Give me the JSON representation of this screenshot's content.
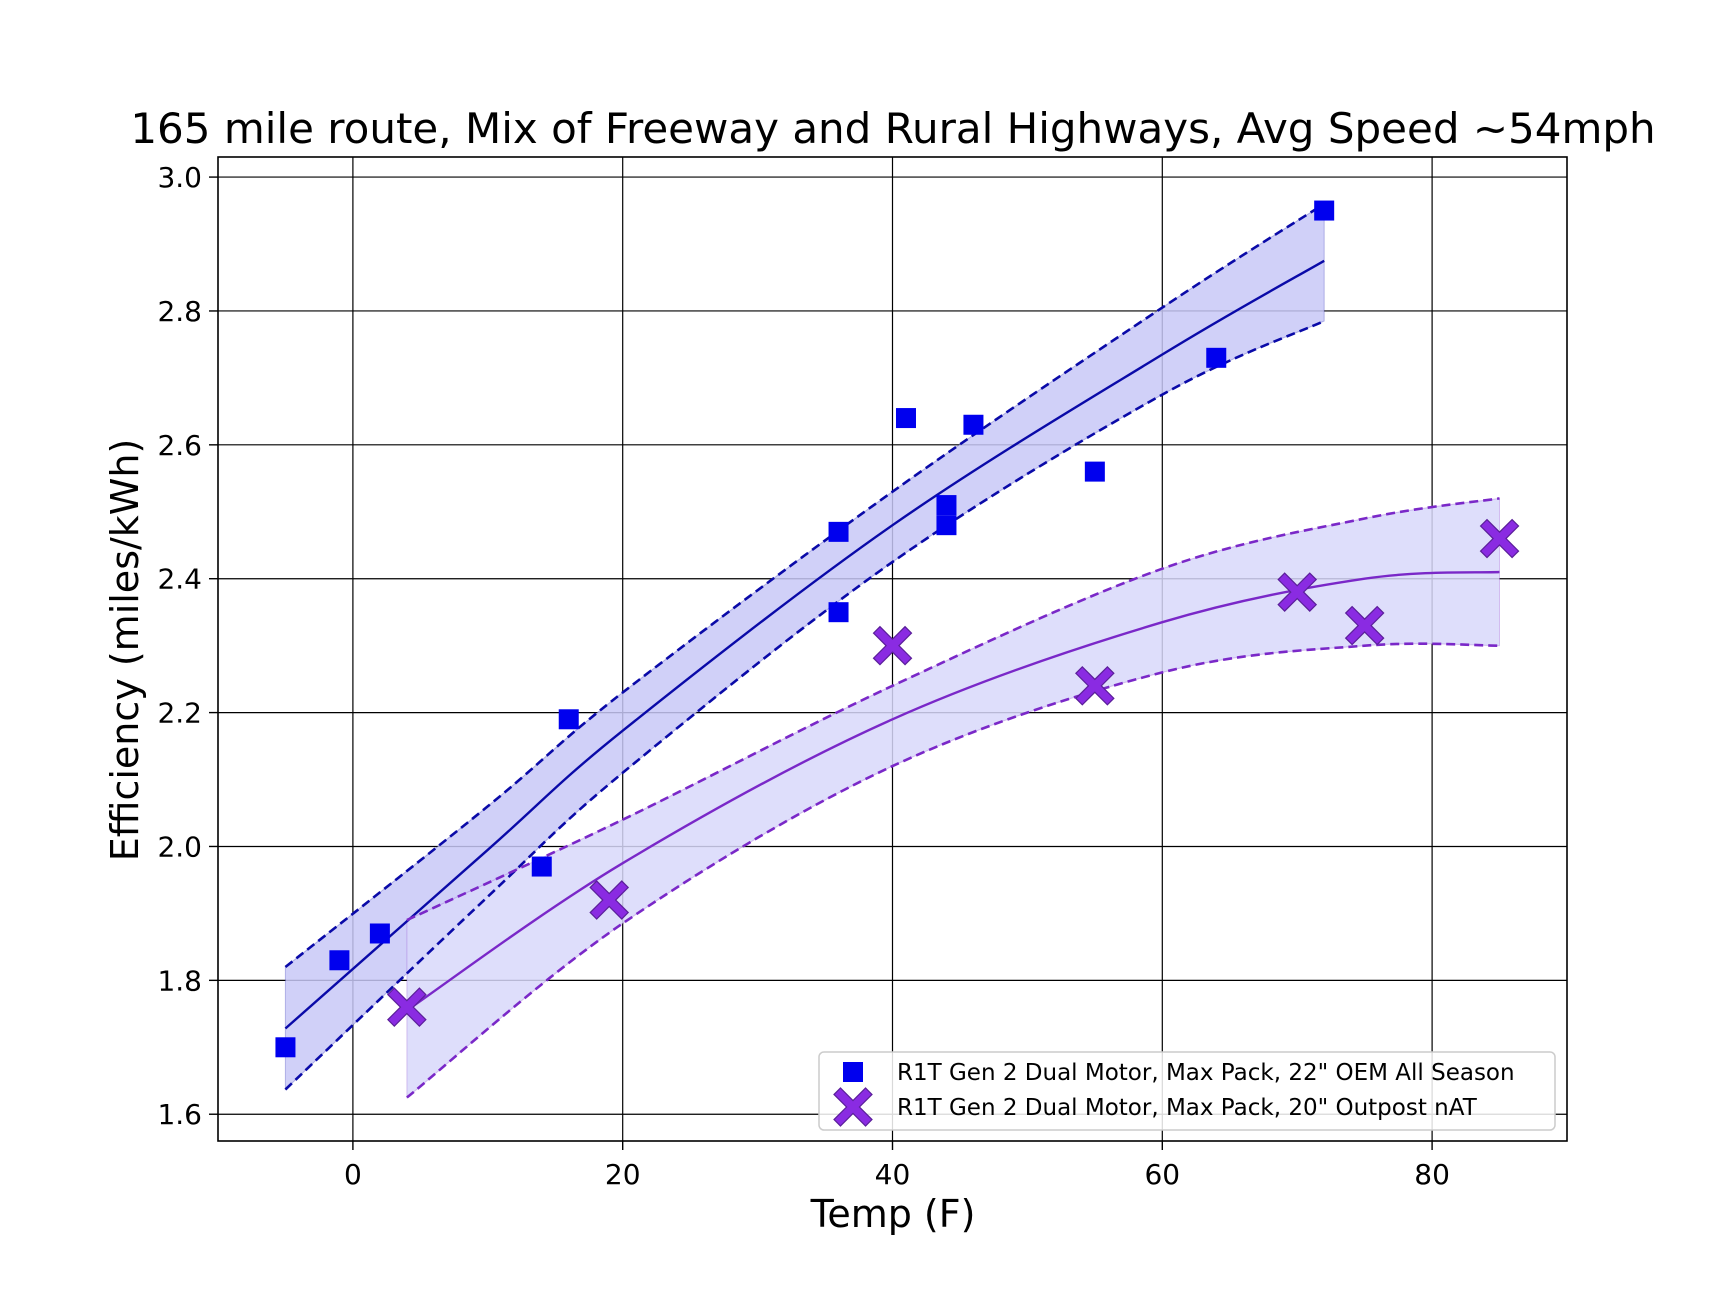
{
  "chart_data": {
    "type": "scatter",
    "title": "165 mile route, Mix of Freeway and Rural Highways, Avg Speed ~54mph",
    "xlabel": "Temp (F)",
    "ylabel": "Efficiency (miles/kWh)",
    "xlim": [
      -10,
      90
    ],
    "ylim": [
      1.56,
      3.03
    ],
    "xticks": [
      0,
      20,
      40,
      60,
      80
    ],
    "yticks": [
      1.6,
      1.8,
      2.0,
      2.2,
      2.4,
      2.6,
      2.8,
      3.0
    ],
    "grid": true,
    "legend_position": "lower-right",
    "series": [
      {
        "name": "R1T Gen 2 Dual Motor, Max Pack, 22\" OEM All Season",
        "marker": "square",
        "color": "#0000ee",
        "fit_color": "#0a0aa8",
        "band_color": "#c8c8f7",
        "points": [
          [
            -5,
            1.7
          ],
          [
            -1,
            1.83
          ],
          [
            2,
            1.87
          ],
          [
            14,
            1.97
          ],
          [
            16,
            2.19
          ],
          [
            36,
            2.47
          ],
          [
            36,
            2.35
          ],
          [
            41,
            2.64
          ],
          [
            44,
            2.51
          ],
          [
            44,
            2.48
          ],
          [
            46,
            2.63
          ],
          [
            55,
            2.56
          ],
          [
            64,
            2.73
          ],
          [
            72,
            2.95
          ]
        ],
        "fit": [
          [
            -5,
            1.728
          ],
          [
            10,
            1.995
          ],
          [
            20,
            2.173
          ],
          [
            40,
            2.48
          ],
          [
            60,
            2.735
          ],
          [
            72,
            2.875
          ]
        ],
        "band_upper": [
          [
            -5,
            1.82
          ],
          [
            10,
            2.06
          ],
          [
            20,
            2.23
          ],
          [
            40,
            2.53
          ],
          [
            60,
            2.805
          ],
          [
            72,
            2.96
          ]
        ],
        "band_lower": [
          [
            -5,
            1.637
          ],
          [
            10,
            1.925
          ],
          [
            20,
            2.11
          ],
          [
            40,
            2.425
          ],
          [
            60,
            2.675
          ],
          [
            72,
            2.785
          ]
        ]
      },
      {
        "name": "R1T Gen 2 Dual Motor, Max Pack, 20\" Outpost nAT",
        "marker": "x",
        "color": "#8a2be2",
        "fit_color": "#7a28c8",
        "band_color": "#d8d8fa",
        "points": [
          [
            4,
            1.76
          ],
          [
            19,
            1.92
          ],
          [
            40,
            2.3
          ],
          [
            55,
            2.24
          ],
          [
            70,
            2.38
          ],
          [
            75,
            2.33
          ],
          [
            85,
            2.46
          ]
        ],
        "fit": [
          [
            4,
            1.755
          ],
          [
            20,
            1.975
          ],
          [
            40,
            2.19
          ],
          [
            60,
            2.335
          ],
          [
            75,
            2.4
          ],
          [
            85,
            2.41
          ]
        ],
        "band_upper": [
          [
            4,
            1.89
          ],
          [
            20,
            2.04
          ],
          [
            40,
            2.24
          ],
          [
            60,
            2.415
          ],
          [
            75,
            2.49
          ],
          [
            85,
            2.52
          ]
        ],
        "band_lower": [
          [
            4,
            1.625
          ],
          [
            20,
            1.885
          ],
          [
            40,
            2.12
          ],
          [
            60,
            2.26
          ],
          [
            75,
            2.3
          ],
          [
            85,
            2.3
          ]
        ]
      }
    ]
  }
}
